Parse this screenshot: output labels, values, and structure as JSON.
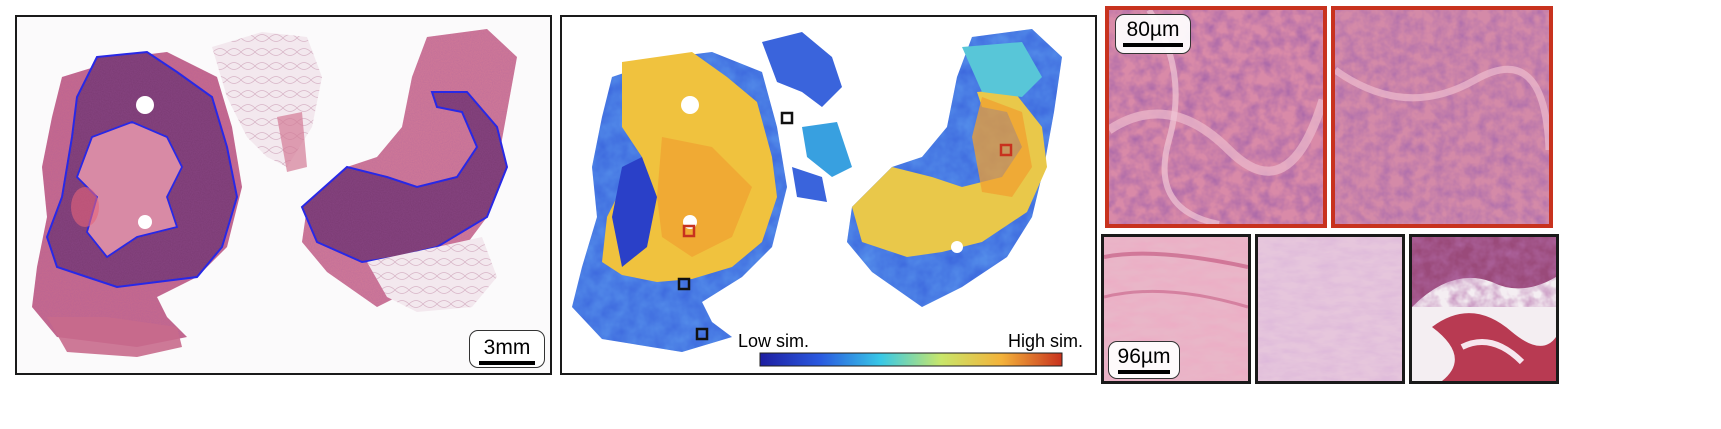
{
  "panels": {
    "he_slide": {
      "scale_bar_label": "3mm"
    },
    "similarity_map": {
      "colorbar": {
        "low_label": "Low sim.",
        "high_label": "High sim.",
        "colormap": "jet"
      },
      "marker_colors": {
        "query": "#c8321e",
        "retrieved": "#111111"
      }
    },
    "top_patches": {
      "scale_bar_label": "80µm",
      "border_color": "#c8321e",
      "count": 2
    },
    "bottom_patches": {
      "scale_bar_label": "96µm",
      "border_color": "#1a1a1a",
      "count": 3
    }
  },
  "colors": {
    "tumor_outline": "#2828e6",
    "tissue_pink": "#c86a8c",
    "tumor_purple": "#7a3a72",
    "fatty_tissue": "#ead8e2"
  }
}
